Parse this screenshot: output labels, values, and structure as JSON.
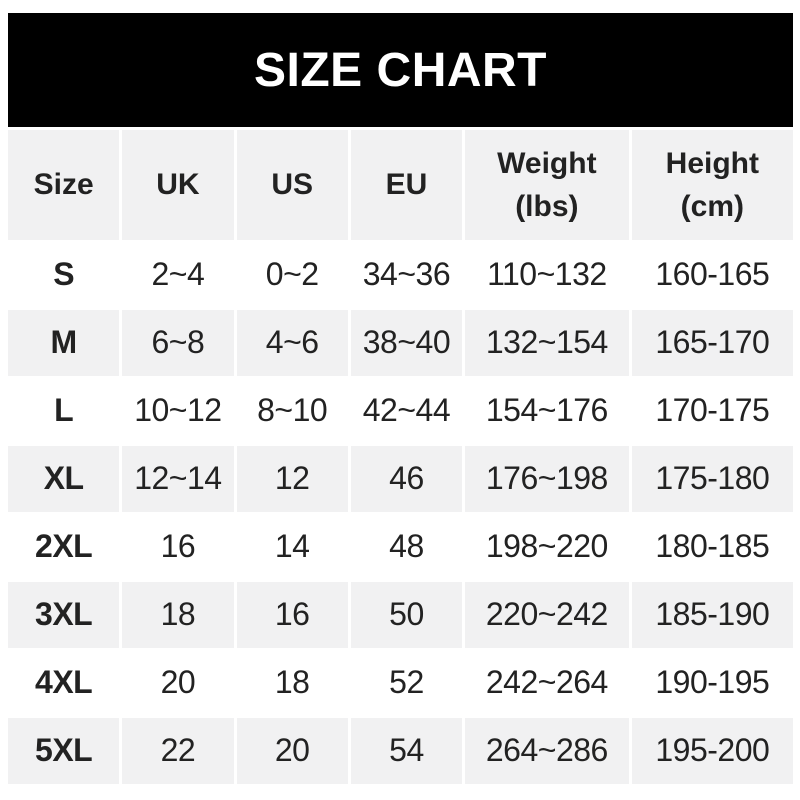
{
  "banner": {
    "title": "SIZE CHART"
  },
  "colors": {
    "banner_bg": "#000000",
    "banner_text": "#ffffff",
    "stripe": "#f1f1f2",
    "text": "#222222",
    "page_bg": "#ffffff"
  },
  "table": {
    "header": {
      "size": "Size",
      "uk": "UK",
      "us": "US",
      "eu": "EU",
      "weight_line1": "Weight",
      "weight_line2": "(lbs)",
      "height_line1": "Height",
      "height_line2": "(cm)"
    },
    "rows": [
      {
        "size": "S",
        "uk": "2~4",
        "us": "0~2",
        "eu": "34~36",
        "weight": "110~132",
        "height": "160-165"
      },
      {
        "size": "M",
        "uk": "6~8",
        "us": "4~6",
        "eu": "38~40",
        "weight": "132~154",
        "height": "165-170"
      },
      {
        "size": "L",
        "uk": "10~12",
        "us": "8~10",
        "eu": "42~44",
        "weight": "154~176",
        "height": "170-175"
      },
      {
        "size": "XL",
        "uk": "12~14",
        "us": "12",
        "eu": "46",
        "weight": "176~198",
        "height": "175-180"
      },
      {
        "size": "2XL",
        "uk": "16",
        "us": "14",
        "eu": "48",
        "weight": "198~220",
        "height": "180-185"
      },
      {
        "size": "3XL",
        "uk": "18",
        "us": "16",
        "eu": "50",
        "weight": "220~242",
        "height": "185-190"
      },
      {
        "size": "4XL",
        "uk": "20",
        "us": "18",
        "eu": "52",
        "weight": "242~264",
        "height": "190-195"
      },
      {
        "size": "5XL",
        "uk": "22",
        "us": "20",
        "eu": "54",
        "weight": "264~286",
        "height": "195-200"
      }
    ]
  },
  "chart_data": {
    "type": "table",
    "title": "SIZE CHART",
    "columns": [
      "Size",
      "UK",
      "US",
      "EU",
      "Weight (lbs)",
      "Height (cm)"
    ],
    "rows": [
      [
        "S",
        "2~4",
        "0~2",
        "34~36",
        "110~132",
        "160-165"
      ],
      [
        "M",
        "6~8",
        "4~6",
        "38~40",
        "132~154",
        "165-170"
      ],
      [
        "L",
        "10~12",
        "8~10",
        "42~44",
        "154~176",
        "170-175"
      ],
      [
        "XL",
        "12~14",
        "12",
        "46",
        "176~198",
        "175-180"
      ],
      [
        "2XL",
        "16",
        "14",
        "48",
        "198~220",
        "180-185"
      ],
      [
        "3XL",
        "18",
        "16",
        "50",
        "220~242",
        "185-190"
      ],
      [
        "4XL",
        "20",
        "18",
        "52",
        "242~264",
        "190-195"
      ],
      [
        "5XL",
        "22",
        "20",
        "54",
        "264~286",
        "195-200"
      ]
    ],
    "layout": {
      "striped_rows": [
        "header",
        "M",
        "XL",
        "3XL",
        "5XL"
      ],
      "grid": "off",
      "header_position": "top"
    }
  }
}
